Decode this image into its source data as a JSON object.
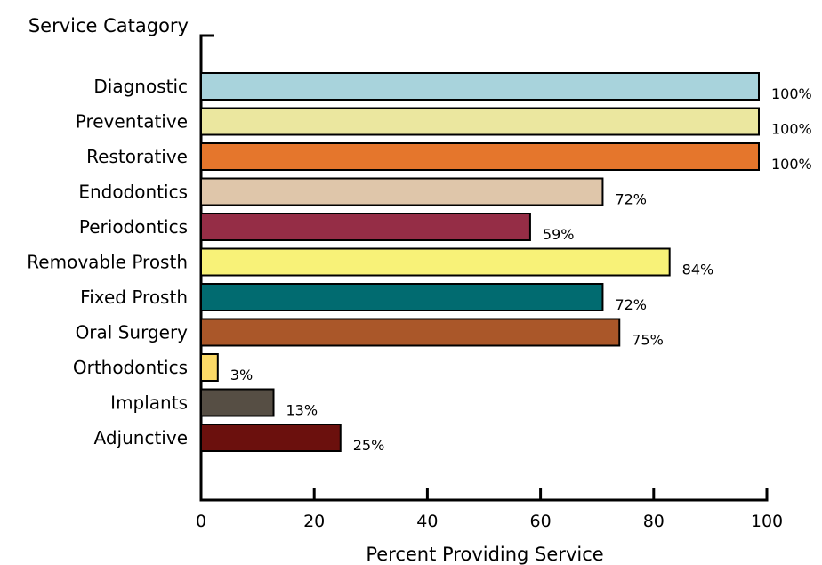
{
  "chart_data": {
    "type": "bar",
    "orientation": "horizontal",
    "ylabel": "Service Catagory",
    "xlabel": "Percent Providing Service",
    "xlim": [
      0,
      100
    ],
    "xticks": [
      0,
      20,
      40,
      60,
      80,
      100
    ],
    "grid": false,
    "categories": [
      "Diagnostic",
      "Preventative",
      "Restorative",
      "Endodontics",
      "Periodontics",
      "Removable Prosth",
      "Fixed Prosth",
      "Oral Surgery",
      "Orthodontics",
      "Implants",
      "Adjunctive"
    ],
    "values": [
      100,
      100,
      100,
      72,
      59,
      84,
      72,
      75,
      3,
      13,
      25
    ],
    "value_labels": [
      "100%",
      "100%",
      "100%",
      "72%",
      "59%",
      "84%",
      "72%",
      "75%",
      "3%",
      "13%",
      "25%"
    ],
    "colors": [
      "#a8d3dc",
      "#ebe79f",
      "#e5762c",
      "#dfc6aa",
      "#952d46",
      "#f8f278",
      "#016b70",
      "#aa5729",
      "#fbd966",
      "#564e44",
      "#6b100d"
    ],
    "bar_outline_color": "#000000"
  }
}
